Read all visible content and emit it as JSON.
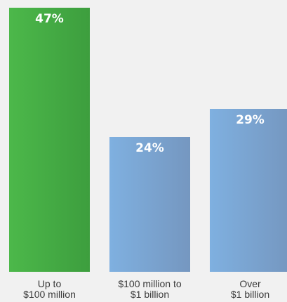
{
  "chart_data": {
    "type": "bar",
    "categories": [
      [
        "Up to",
        "$100 million"
      ],
      [
        "$100 million to",
        "$1 billion"
      ],
      [
        "Over",
        "$1 billion"
      ]
    ],
    "values": [
      47,
      24,
      29
    ],
    "value_labels": [
      "47%",
      "24%",
      "29%"
    ],
    "ylim": [
      0,
      48
    ],
    "grid": false,
    "legend": "none",
    "colors": {
      "background": "#f1f1f1",
      "bar_green_start": "#4cb84a",
      "bar_green_end": "#3d9e3e",
      "bar_blue_start": "#7fb0e0",
      "bar_blue_end": "#7597c0",
      "label_text": "#3a3a3a",
      "value_text": "#ffffff"
    },
    "bar_fills": [
      "green",
      "blue",
      "blue"
    ]
  }
}
